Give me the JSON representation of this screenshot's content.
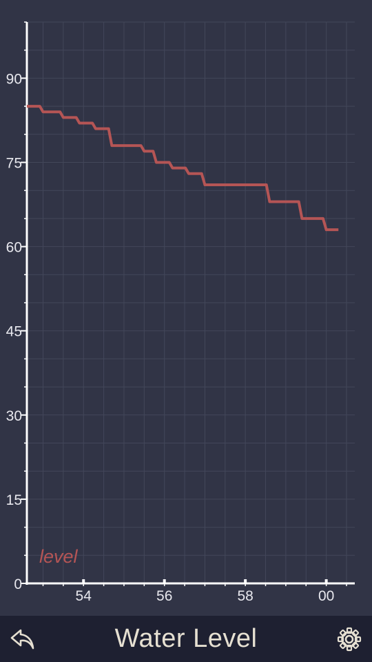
{
  "app": {
    "title": "Water Level"
  },
  "colors": {
    "background": "#313446",
    "bottom_bar": "#1e2031",
    "axis": "#ffffff",
    "grid": "#43475a",
    "line": "#b55555",
    "title_text": "#e6e0d2"
  },
  "icons": {
    "back": "reply-arrow-icon",
    "settings": "gear-icon"
  },
  "chart_data": {
    "type": "line",
    "step": true,
    "legend": {
      "label": "level",
      "placement": "bottom-left"
    },
    "grid": true,
    "xlabel": "",
    "ylabel": "",
    "ylim": [
      0,
      100
    ],
    "y_ticks": [
      0,
      15,
      30,
      45,
      60,
      75,
      90
    ],
    "xlim": [
      0,
      7.9
    ],
    "x_ticks": [
      {
        "value": 1.4,
        "label": "54"
      },
      {
        "value": 3.4,
        "label": "56"
      },
      {
        "value": 5.4,
        "label": "58"
      },
      {
        "value": 7.4,
        "label": "00"
      }
    ],
    "series": [
      {
        "name": "level",
        "x": [
          0.0,
          0.4,
          0.9,
          1.3,
          1.7,
          2.1,
          2.9,
          3.2,
          3.6,
          4.0,
          4.4,
          4.8,
          6.0,
          6.8,
          7.4,
          7.7
        ],
        "y": [
          85,
          84,
          83,
          82,
          81,
          78,
          77,
          75,
          74,
          73,
          71,
          71,
          68,
          65,
          63,
          63
        ]
      }
    ]
  }
}
